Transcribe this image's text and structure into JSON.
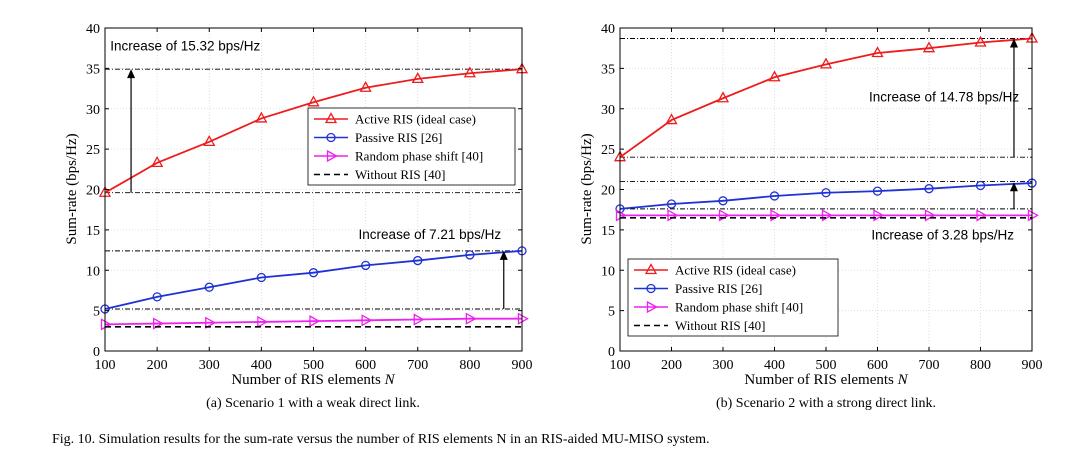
{
  "figure_caption": "Fig. 10.   Simulation results for the sum-rate versus the number of RIS elements N in an RIS-aided MU-MISO system.",
  "colors": {
    "active": "#ee1c1c",
    "passive": "#1f32d6",
    "random": "#ee22ee",
    "without": "#000000"
  },
  "chart_data": [
    {
      "type": "line",
      "caption": "(a) Scenario 1 with a weak direct link.",
      "xlabel": "Number of RIS elements N",
      "ylabel": "Sum-rate (bps/Hz)",
      "xlim": [
        100,
        900
      ],
      "ylim": [
        0,
        40
      ],
      "xticks": [
        100,
        200,
        300,
        400,
        500,
        600,
        700,
        800,
        900
      ],
      "yticks": [
        0,
        5,
        10,
        15,
        20,
        25,
        30,
        35,
        40
      ],
      "grid": true,
      "legend_position": "center-right",
      "x": [
        100,
        200,
        300,
        400,
        500,
        600,
        700,
        800,
        900
      ],
      "series": [
        {
          "name": "Active RIS (ideal case)",
          "color_key": "active",
          "marker": "triangle-up",
          "values": [
            19.6,
            23.3,
            25.9,
            28.8,
            30.8,
            32.6,
            33.7,
            34.4,
            34.9
          ]
        },
        {
          "name": "Passive RIS [26]",
          "color_key": "passive",
          "marker": "circle",
          "values": [
            5.2,
            6.7,
            7.9,
            9.1,
            9.7,
            10.6,
            11.2,
            11.9,
            12.4
          ]
        },
        {
          "name": "Random phase shift [40]",
          "color_key": "random",
          "marker": "triangle-right",
          "values": [
            3.3,
            3.4,
            3.5,
            3.6,
            3.7,
            3.8,
            3.9,
            4.0,
            4.0
          ]
        },
        {
          "name": "Without RIS [40]",
          "color_key": "without",
          "marker": "none",
          "dashed": true,
          "values": [
            3.0,
            3.0,
            3.0,
            3.0,
            3.0,
            3.0,
            3.0,
            3.0,
            3.0
          ]
        }
      ],
      "annotations": [
        {
          "text": "Increase of 15.32 bps/Hz",
          "color_key": "active",
          "ref_lines": [
            19.6,
            34.9
          ],
          "arrow_x": 150,
          "arrow_from": 19.6,
          "arrow_to": 34.9,
          "label_x": 110,
          "label_y": 37.2,
          "anchor": "start"
        },
        {
          "text": "Increase of 7.21 bps/Hz",
          "color_key": "passive",
          "ref_lines": [
            5.2,
            12.4
          ],
          "arrow_x": 865,
          "arrow_from": 5.2,
          "arrow_to": 12.4,
          "label_x": 860,
          "label_y": 13.9,
          "anchor": "end"
        }
      ]
    },
    {
      "type": "line",
      "caption": "(b) Scenario 2 with a strong direct link.",
      "xlabel": "Number of RIS elements N",
      "ylabel": "Sum-rate (bps/Hz)",
      "xlim": [
        100,
        900
      ],
      "ylim": [
        0,
        40
      ],
      "xticks": [
        100,
        200,
        300,
        400,
        500,
        600,
        700,
        800,
        900
      ],
      "yticks": [
        0,
        5,
        10,
        15,
        20,
        25,
        30,
        35,
        40
      ],
      "grid": true,
      "legend_position": "bottom-left",
      "x": [
        100,
        200,
        300,
        400,
        500,
        600,
        700,
        800,
        900
      ],
      "series": [
        {
          "name": "Active RIS (ideal case)",
          "color_key": "active",
          "marker": "triangle-up",
          "values": [
            24.0,
            28.6,
            31.3,
            33.9,
            35.5,
            36.9,
            37.5,
            38.2,
            38.7
          ]
        },
        {
          "name": "Passive RIS [26]",
          "color_key": "passive",
          "marker": "circle",
          "values": [
            17.6,
            18.2,
            18.6,
            19.2,
            19.6,
            19.8,
            20.1,
            20.5,
            20.8
          ]
        },
        {
          "name": "Random phase shift [40]",
          "color_key": "random",
          "marker": "triangle-right",
          "values": [
            16.8,
            16.8,
            16.8,
            16.8,
            16.8,
            16.8,
            16.8,
            16.8,
            16.8
          ]
        },
        {
          "name": "Without RIS [40]",
          "color_key": "without",
          "marker": "none",
          "dashed": true,
          "values": [
            16.5,
            16.5,
            16.5,
            16.5,
            16.5,
            16.5,
            16.5,
            16.5,
            16.5
          ]
        }
      ],
      "annotations": [
        {
          "text": "Increase of 14.78 bps/Hz",
          "color_key": "active",
          "ref_lines": [
            24.0,
            38.7
          ],
          "arrow_x": 865,
          "arrow_from": 24.0,
          "arrow_to": 38.7,
          "label_x": 875,
          "label_y": 30.9,
          "anchor": "end"
        },
        {
          "text": "Increase of 3.28 bps/Hz",
          "color_key": "passive",
          "ref_lines": [
            17.6,
            21.0
          ],
          "arrow_x": 865,
          "arrow_from": 17.6,
          "arrow_to": 20.9,
          "label_x": 865,
          "label_y": 13.8,
          "anchor": "end"
        }
      ]
    }
  ]
}
